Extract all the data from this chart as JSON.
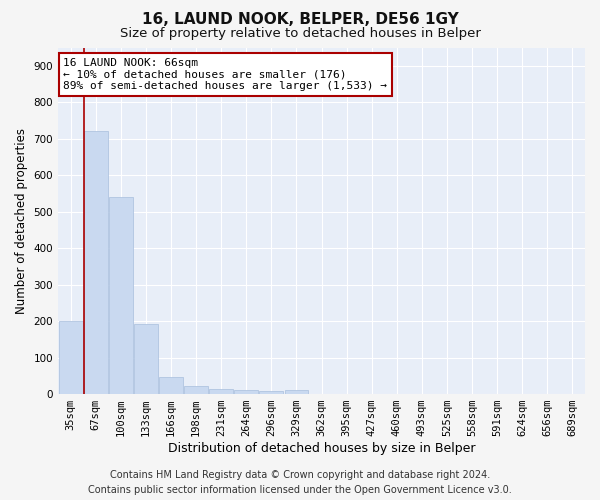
{
  "title1": "16, LAUND NOOK, BELPER, DE56 1GY",
  "title2": "Size of property relative to detached houses in Belper",
  "xlabel": "Distribution of detached houses by size in Belper",
  "ylabel": "Number of detached properties",
  "categories": [
    "35sqm",
    "67sqm",
    "100sqm",
    "133sqm",
    "166sqm",
    "198sqm",
    "231sqm",
    "264sqm",
    "296sqm",
    "329sqm",
    "362sqm",
    "395sqm",
    "427sqm",
    "460sqm",
    "493sqm",
    "525sqm",
    "558sqm",
    "591sqm",
    "624sqm",
    "656sqm",
    "689sqm"
  ],
  "values": [
    200,
    720,
    540,
    193,
    47,
    22,
    15,
    12,
    9,
    10,
    0,
    0,
    0,
    0,
    0,
    0,
    0,
    0,
    0,
    0,
    0
  ],
  "bar_color": "#c9d9f0",
  "bar_edge_color": "#a8bedd",
  "property_line_x": 0.545,
  "property_line_color": "#aa0000",
  "annotation_text": "16 LAUND NOOK: 66sqm\n← 10% of detached houses are smaller (176)\n89% of semi-detached houses are larger (1,533) →",
  "annotation_box_color": "#ffffff",
  "annotation_box_edge": "#aa0000",
  "ylim": [
    0,
    950
  ],
  "yticks": [
    0,
    100,
    200,
    300,
    400,
    500,
    600,
    700,
    800,
    900
  ],
  "footer1": "Contains HM Land Registry data © Crown copyright and database right 2024.",
  "footer2": "Contains public sector information licensed under the Open Government Licence v3.0.",
  "bg_color": "#e8eef8",
  "grid_color": "#ffffff",
  "title1_fontsize": 11,
  "title2_fontsize": 9.5,
  "ylabel_fontsize": 8.5,
  "xlabel_fontsize": 9,
  "tick_fontsize": 7.5,
  "footer_fontsize": 7,
  "ann_fontsize": 8
}
